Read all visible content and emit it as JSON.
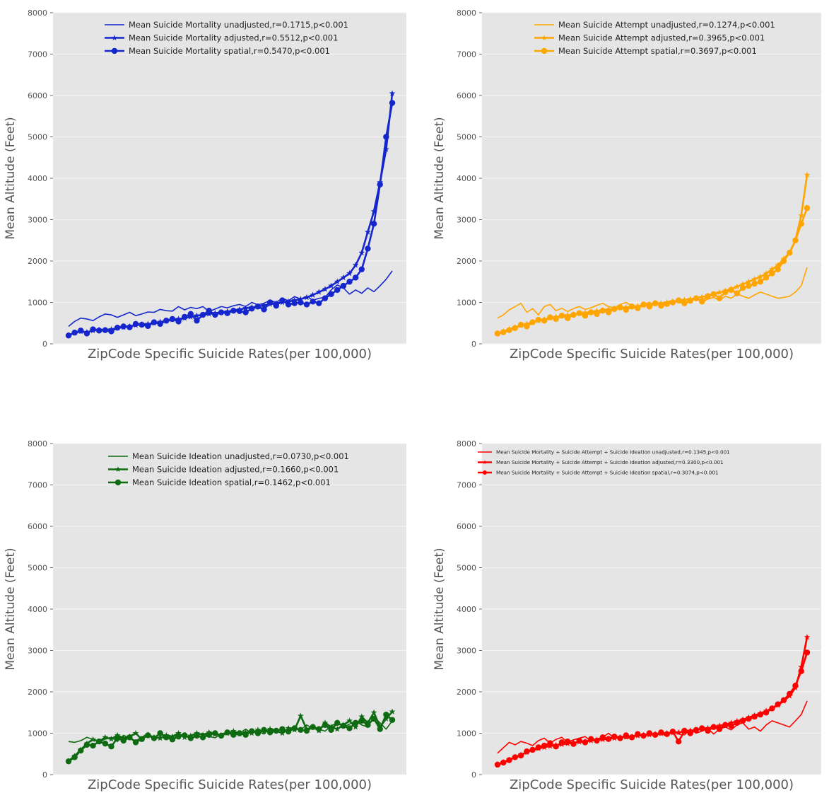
{
  "chart_data": [
    {
      "type": "line",
      "title": "",
      "xlabel": "ZipCode Specific Suicide Rates(per 100,000)",
      "ylabel": "Mean Altitude (Feet)",
      "ylim": [
        0,
        8000
      ],
      "yticks": [
        0,
        1000,
        2000,
        3000,
        4000,
        5000,
        6000,
        7000,
        8000
      ],
      "xticks": [],
      "grid": true,
      "legend_position": "top-right",
      "color": "#1526cc",
      "series": [
        {
          "name": "Mean Suicide Mortality unadjusted,r=0.1715,p<0.001",
          "marker": "none",
          "values": [
            420,
            540,
            620,
            600,
            560,
            650,
            720,
            700,
            640,
            700,
            760,
            680,
            720,
            770,
            760,
            830,
            800,
            790,
            900,
            820,
            880,
            850,
            900,
            780,
            840,
            900,
            870,
            920,
            950,
            900,
            1000,
            940,
            980,
            1050,
            1000,
            1100,
            1040,
            1140,
            1080,
            1150,
            1050,
            1100,
            1120,
            1300,
            1420,
            1350,
            1200,
            1300,
            1220,
            1350,
            1260,
            1400,
            1560,
            1760
          ]
        },
        {
          "name": "Mean Suicide Mortality adjusted,r=0.5512,p<0.001",
          "marker": "star",
          "values": [
            210,
            260,
            300,
            280,
            320,
            340,
            330,
            350,
            380,
            400,
            420,
            450,
            470,
            480,
            500,
            530,
            550,
            580,
            600,
            620,
            650,
            680,
            700,
            720,
            740,
            760,
            780,
            800,
            830,
            860,
            880,
            900,
            930,
            960,
            980,
            1000,
            1020,
            1050,
            1080,
            1120,
            1180,
            1250,
            1320,
            1400,
            1500,
            1600,
            1700,
            1900,
            2200,
            2700,
            3200,
            3900,
            4700,
            6050
          ]
        },
        {
          "name": "Mean Suicide Mortality spatial,r=0.5470,p<0.001",
          "marker": "circle",
          "values": [
            200,
            270,
            320,
            250,
            350,
            320,
            330,
            300,
            390,
            420,
            400,
            480,
            460,
            430,
            520,
            480,
            560,
            600,
            540,
            650,
            720,
            560,
            700,
            800,
            700,
            760,
            740,
            800,
            790,
            760,
            850,
            900,
            830,
            1000,
            920,
            1050,
            950,
            980,
            1000,
            950,
            1020,
            980,
            1100,
            1200,
            1300,
            1400,
            1500,
            1600,
            1800,
            2300,
            2900,
            3850,
            5000,
            5820
          ]
        }
      ]
    },
    {
      "type": "line",
      "title": "",
      "xlabel": "ZipCode Specific Suicide Rates(per 100,000)",
      "ylabel": "Mean Altitude (Feet)",
      "ylim": [
        0,
        8000
      ],
      "yticks": [
        0,
        1000,
        2000,
        3000,
        4000,
        5000,
        6000,
        7000,
        8000
      ],
      "xticks": [],
      "grid": true,
      "legend_position": "top-right",
      "color": "#ffa500",
      "series": [
        {
          "name": "Mean Suicide Attempt unadjusted,r=0.1274,p<0.001",
          "marker": "none",
          "values": [
            620,
            700,
            820,
            900,
            980,
            760,
            850,
            700,
            900,
            950,
            800,
            860,
            780,
            850,
            900,
            830,
            870,
            930,
            980,
            900,
            870,
            950,
            1000,
            920,
            880,
            960,
            1000,
            940,
            980,
            1020,
            1050,
            990,
            1000,
            1050,
            1100,
            1000,
            1080,
            1120,
            1050,
            1150,
            1100,
            1200,
            1150,
            1100,
            1180,
            1250,
            1200,
            1150,
            1100,
            1120,
            1150,
            1250,
            1400,
            1850
          ]
        },
        {
          "name": "Mean Suicide Attempt adjusted,r=0.3965,p<0.001",
          "marker": "star",
          "values": [
            240,
            300,
            350,
            400,
            440,
            480,
            520,
            560,
            590,
            620,
            650,
            670,
            690,
            710,
            730,
            750,
            770,
            790,
            810,
            830,
            850,
            870,
            880,
            900,
            910,
            930,
            950,
            960,
            980,
            1000,
            1020,
            1040,
            1060,
            1080,
            1100,
            1130,
            1160,
            1200,
            1240,
            1280,
            1330,
            1380,
            1440,
            1500,
            1560,
            1620,
            1700,
            1800,
            1900,
            2050,
            2200,
            2500,
            3100,
            4080
          ]
        },
        {
          "name": "Mean Suicide Attempt spatial,r=0.3697,p<0.001",
          "marker": "circle",
          "values": [
            250,
            280,
            330,
            380,
            460,
            420,
            520,
            580,
            560,
            640,
            600,
            680,
            620,
            700,
            740,
            680,
            760,
            720,
            800,
            760,
            840,
            880,
            820,
            900,
            860,
            950,
            900,
            980,
            920,
            960,
            1000,
            1050,
            980,
            1040,
            1100,
            1020,
            1150,
            1200,
            1100,
            1250,
            1300,
            1220,
            1350,
            1400,
            1450,
            1500,
            1600,
            1700,
            1800,
            2000,
            2200,
            2500,
            2900,
            3280
          ]
        }
      ]
    },
    {
      "type": "line",
      "title": "",
      "xlabel": "ZipCode Specific Suicide Rates(per 100,000)",
      "ylabel": "Mean Altitude (Feet)",
      "ylim": [
        0,
        8000
      ],
      "yticks": [
        0,
        1000,
        2000,
        3000,
        4000,
        5000,
        6000,
        7000,
        8000
      ],
      "xticks": [],
      "grid": true,
      "legend_position": "top-right",
      "color": "#0f6b12",
      "series": [
        {
          "name": "Mean Suicide Ideation unadjusted,r=0.0730,p<0.001",
          "marker": "none",
          "values": [
            800,
            780,
            820,
            900,
            850,
            780,
            860,
            900,
            800,
            950,
            880,
            820,
            900,
            1000,
            870,
            920,
            860,
            940,
            900,
            980,
            880,
            960,
            1000,
            920,
            890,
            980,
            1030,
            950,
            1000,
            1100,
            1000,
            1050,
            980,
            1120,
            1060,
            1000,
            1100,
            1150,
            1080,
            1200,
            1120,
            1100,
            1050,
            1180,
            1250,
            1150,
            1220,
            1300,
            1200,
            1150,
            1400,
            1250,
            1100,
            1300
          ]
        },
        {
          "name": "Mean Suicide Ideation adjusted,r=0.1660,p<0.001",
          "marker": "star",
          "values": [
            330,
            450,
            600,
            750,
            850,
            800,
            900,
            860,
            950,
            880,
            920,
            1000,
            850,
            960,
            900,
            880,
            950,
            920,
            1000,
            900,
            940,
            1000,
            960,
            1020,
            980,
            950,
            1000,
            1050,
            980,
            1020,
            1000,
            1080,
            1040,
            1100,
            1060,
            1000,
            1120,
            1080,
            1420,
            1100,
            1150,
            1060,
            1250,
            1150,
            1100,
            1200,
            1300,
            1150,
            1400,
            1250,
            1500,
            1150,
            1350,
            1520
          ]
        },
        {
          "name": "Mean Suicide Ideation spatial,r=0.1462,p<0.001",
          "marker": "circle",
          "values": [
            320,
            420,
            580,
            720,
            700,
            800,
            750,
            680,
            880,
            820,
            900,
            780,
            860,
            950,
            880,
            1000,
            900,
            850,
            920,
            950,
            880,
            940,
            900,
            960,
            1000,
            940,
            1020,
            960,
            1000,
            960,
            1050,
            1000,
            1080,
            1020,
            1060,
            1100,
            1040,
            1120,
            1080,
            1060,
            1150,
            1100,
            1200,
            1080,
            1250,
            1180,
            1120,
            1250,
            1300,
            1200,
            1350,
            1100,
            1450,
            1320
          ]
        }
      ]
    },
    {
      "type": "line",
      "title": "",
      "xlabel": "ZipCode Specific Suicide Rates(per 100,000)",
      "ylabel": "Mean Altitude (Feet)",
      "ylim": [
        0,
        8000
      ],
      "yticks": [
        0,
        1000,
        2000,
        3000,
        4000,
        5000,
        6000,
        7000,
        8000
      ],
      "xticks": [],
      "grid": true,
      "legend_position": "top-right",
      "color": "#ff0000",
      "series": [
        {
          "name": "Mean Suicide Mortality + Suicide Attempt + Suicide Ideation unadjusted,r=0.1345,p<0.001",
          "marker": "none",
          "values": [
            520,
            650,
            780,
            720,
            800,
            760,
            700,
            820,
            880,
            760,
            850,
            900,
            780,
            840,
            880,
            920,
            800,
            860,
            900,
            1000,
            880,
            940,
            870,
            900,
            960,
            920,
            980,
            940,
            1000,
            920,
            1050,
            980,
            960,
            1100,
            1000,
            1050,
            1120,
            980,
            1100,
            1150,
            1080,
            1200,
            1250,
            1100,
            1150,
            1050,
            1200,
            1300,
            1250,
            1200,
            1150,
            1300,
            1450,
            1780
          ]
        },
        {
          "name": "Mean Suicide Mortality + Suicide Attempt + Suicide Ideation adjusted,r=0.3300,p<0.001",
          "marker": "star",
          "values": [
            250,
            300,
            360,
            420,
            480,
            540,
            590,
            630,
            660,
            690,
            710,
            730,
            750,
            770,
            790,
            800,
            820,
            840,
            850,
            870,
            880,
            900,
            910,
            920,
            940,
            950,
            960,
            980,
            990,
            1000,
            1010,
            1020,
            1040,
            1060,
            1080,
            1100,
            1120,
            1150,
            1180,
            1210,
            1250,
            1290,
            1330,
            1380,
            1430,
            1480,
            1540,
            1600,
            1680,
            1780,
            1900,
            2100,
            2600,
            3320
          ]
        },
        {
          "name": "Mean Suicide Mortality + Suicide Attempt + Suicide Ideation spatial,r=0.3074,p<0.001",
          "marker": "circle",
          "values": [
            240,
            290,
            350,
            420,
            460,
            560,
            600,
            660,
            700,
            760,
            680,
            780,
            800,
            740,
            820,
            780,
            860,
            820,
            900,
            860,
            920,
            880,
            950,
            900,
            980,
            940,
            1000,
            960,
            1020,
            980,
            1040,
            800,
            1060,
            1000,
            1080,
            1120,
            1060,
            1150,
            1100,
            1200,
            1180,
            1250,
            1300,
            1350,
            1400,
            1450,
            1500,
            1600,
            1700,
            1800,
            1950,
            2150,
            2500,
            2950
          ]
        }
      ]
    }
  ]
}
